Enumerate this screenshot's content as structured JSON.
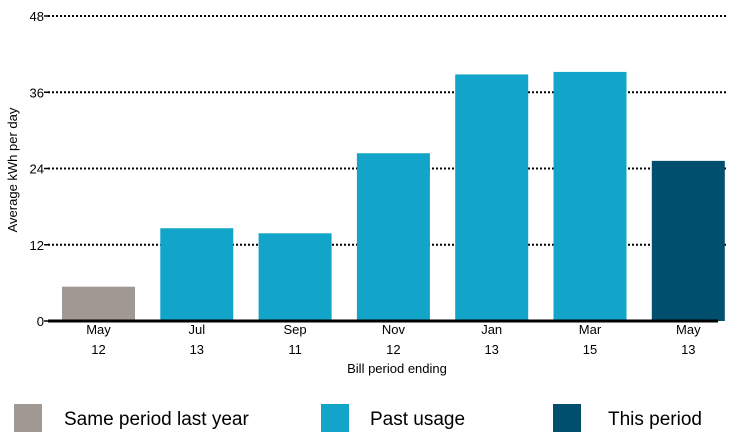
{
  "chart_data": {
    "type": "bar",
    "title": "",
    "xlabel": "Bill period ending",
    "ylabel": "Average kWh per day",
    "ylim": [
      0,
      48
    ],
    "yticks": [
      0,
      12,
      24,
      36,
      48
    ],
    "grid": "horizontal dotted",
    "categories": [
      {
        "month": "May",
        "year": "12"
      },
      {
        "month": "Jul",
        "year": "13"
      },
      {
        "month": "Sep",
        "year": "11"
      },
      {
        "month": "Nov",
        "year": "12"
      },
      {
        "month": "Jan",
        "year": "13"
      },
      {
        "month": "Mar",
        "year": "15"
      },
      {
        "month": "May",
        "year": "13"
      }
    ],
    "values": [
      5.4,
      14.6,
      13.8,
      26.4,
      38.8,
      39.2,
      25.2
    ],
    "bar_groups": [
      "same_period_last_year",
      "past_usage",
      "past_usage",
      "past_usage",
      "past_usage",
      "past_usage",
      "this_period"
    ],
    "legend_position": "bottom",
    "legend": [
      {
        "key": "same_period_last_year",
        "label": "Same period last year",
        "color": "#a09893"
      },
      {
        "key": "past_usage",
        "label": "Past usage",
        "color": "#12a4c9"
      },
      {
        "key": "this_period",
        "label": "This period",
        "color": "#014f6e"
      }
    ]
  }
}
